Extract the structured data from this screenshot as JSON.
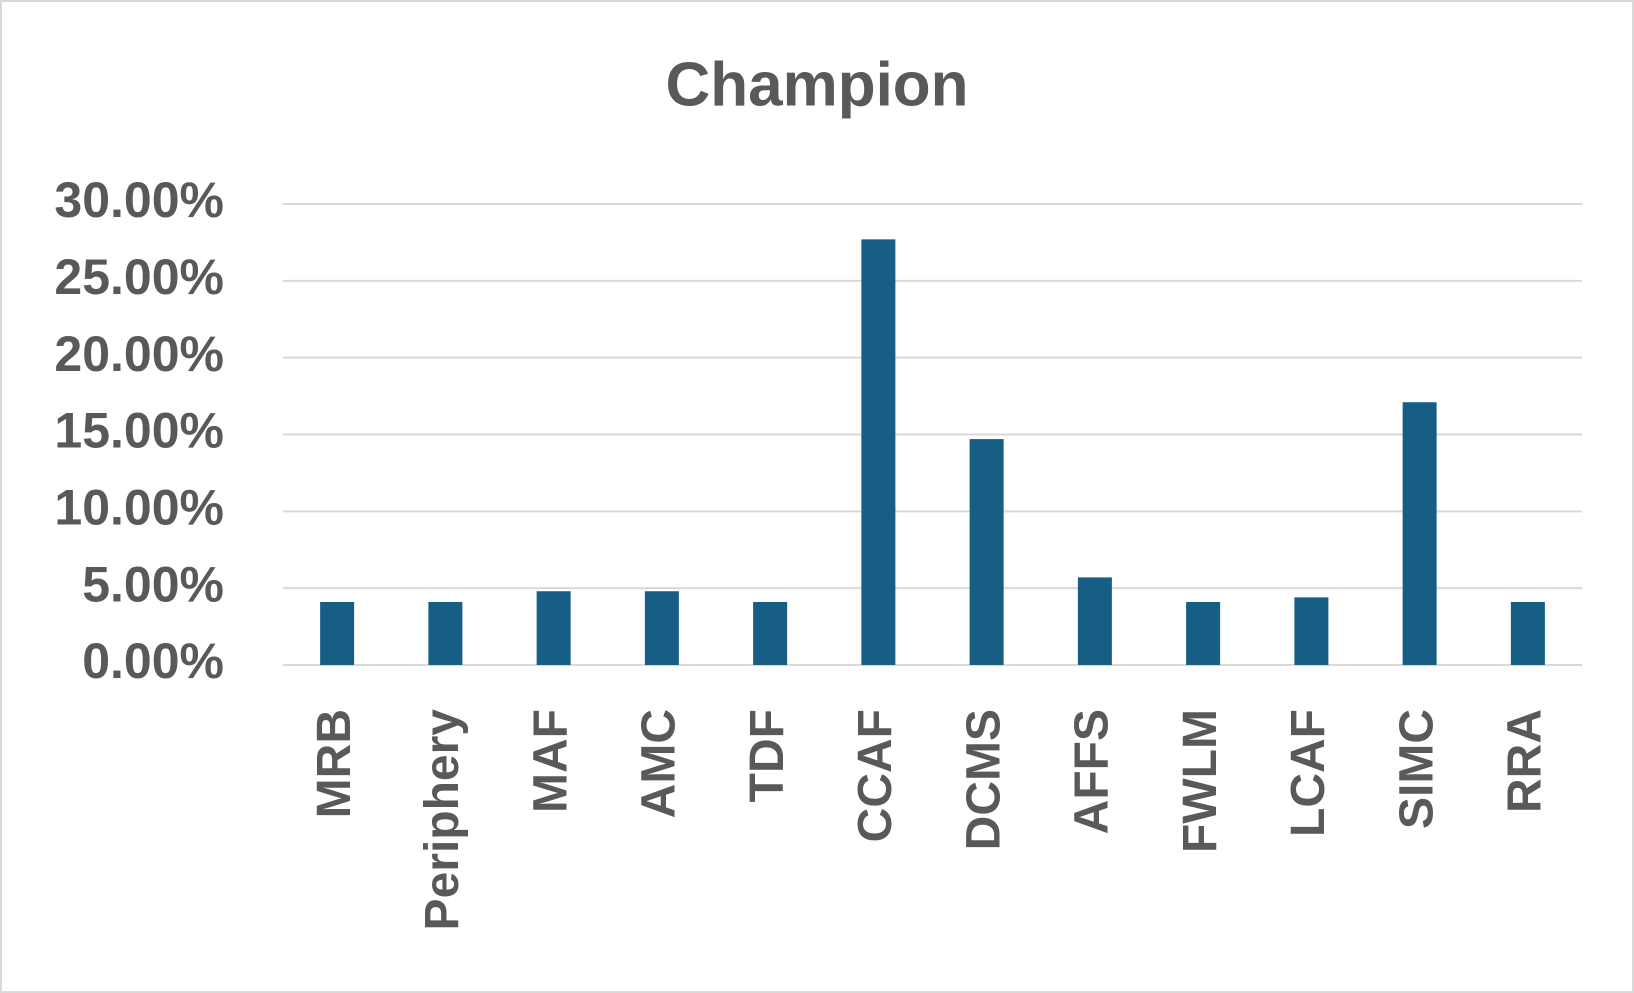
{
  "chart_data": {
    "type": "bar",
    "title": "Champion",
    "categories": [
      "MRB",
      "Periphery",
      "MAF",
      "AMC",
      "TDF",
      "CCAF",
      "DCMS",
      "AFFS",
      "FWLM",
      "LCAF",
      "SIMC",
      "RRA"
    ],
    "values": [
      4.1,
      4.1,
      4.8,
      4.8,
      4.1,
      27.7,
      14.7,
      5.7,
      4.1,
      4.4,
      17.1,
      4.1
    ],
    "color": "#175e84",
    "ylim": [
      0,
      30
    ],
    "yticks": [
      {
        "value": 0,
        "label": "0.00%"
      },
      {
        "value": 5,
        "label": "5.00%"
      },
      {
        "value": 10,
        "label": "10.00%"
      },
      {
        "value": 15,
        "label": "15.00%"
      },
      {
        "value": 20,
        "label": "20.00%"
      },
      {
        "value": 25,
        "label": "25.00%"
      },
      {
        "value": 30,
        "label": "30.00%"
      }
    ],
    "grid": true
  }
}
